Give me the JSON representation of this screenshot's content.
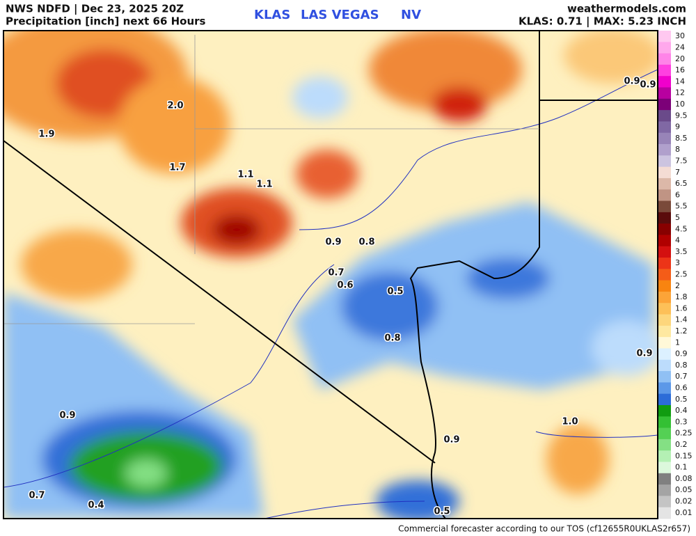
{
  "header": {
    "left_line1": "NWS NDFD | Dec 23, 2025 20Z",
    "left_line2": "Precipitation [inch] next 66 Hours",
    "station": "KLAS",
    "city": "LAS VEGAS",
    "state": "NV",
    "site": "weathermodels.com",
    "summary": "KLAS: 0.71 | MAX: 5.23 INCH"
  },
  "footer": "Commercial forecaster according to our TOS (cf12655R0UKLAS2r657)",
  "map_labels": [
    "2.0",
    "1.9",
    "1.7",
    "1.1",
    "1.1",
    "0.9",
    "0.8",
    "0.7",
    "0.6",
    "0.5",
    "0.8",
    "0.9",
    "0.9",
    "1.0",
    "0.9",
    "0.7",
    "0.4",
    "0.5",
    "0.9",
    "0.9"
  ],
  "colorbar": [
    {
      "label": "30",
      "color": "#ffc8f0"
    },
    {
      "label": "24",
      "color": "#ffa8ec"
    },
    {
      "label": "20",
      "color": "#ff84e8"
    },
    {
      "label": "16",
      "color": "#ff40e0"
    },
    {
      "label": "14",
      "color": "#f000cc"
    },
    {
      "label": "12",
      "color": "#b800a0"
    },
    {
      "label": "10",
      "color": "#7c0078"
    },
    {
      "label": "9.5",
      "color": "#6a4a8a"
    },
    {
      "label": "9",
      "color": "#8068a4"
    },
    {
      "label": "8.5",
      "color": "#9884b8"
    },
    {
      "label": "8",
      "color": "#b0a0cc"
    },
    {
      "label": "7.5",
      "color": "#ccc4e0"
    },
    {
      "label": "7",
      "color": "#f4dcd4"
    },
    {
      "label": "6.5",
      "color": "#dcb8a8"
    },
    {
      "label": "6",
      "color": "#c09484"
    },
    {
      "label": "5.5",
      "color": "#7a4a3a"
    },
    {
      "label": "5",
      "color": "#5a0c0c"
    },
    {
      "label": "4.5",
      "color": "#880000"
    },
    {
      "label": "4",
      "color": "#b00000"
    },
    {
      "label": "3.5",
      "color": "#d41010"
    },
    {
      "label": "3",
      "color": "#ec3418"
    },
    {
      "label": "2.5",
      "color": "#f45c18"
    },
    {
      "label": "2",
      "color": "#f88410"
    },
    {
      "label": "1.8",
      "color": "#fca438"
    },
    {
      "label": "1.6",
      "color": "#fdc058"
    },
    {
      "label": "1.4",
      "color": "#fdd67c"
    },
    {
      "label": "1.2",
      "color": "#fee8a0"
    },
    {
      "label": "1",
      "color": "#fff8d8"
    },
    {
      "label": "0.9",
      "color": "#dcf0ff"
    },
    {
      "label": "0.8",
      "color": "#bcdcfc"
    },
    {
      "label": "0.7",
      "color": "#90c0f4"
    },
    {
      "label": "0.6",
      "color": "#5c98e8"
    },
    {
      "label": "0.5",
      "color": "#2c6cd8"
    },
    {
      "label": "0.4",
      "color": "#109c10"
    },
    {
      "label": "0.3",
      "color": "#34c034"
    },
    {
      "label": "0.25",
      "color": "#54d054"
    },
    {
      "label": "0.2",
      "color": "#84e084"
    },
    {
      "label": "0.15",
      "color": "#b4f0b4"
    },
    {
      "label": "0.1",
      "color": "#dcf8dc"
    },
    {
      "label": "0.08",
      "color": "#808080"
    },
    {
      "label": "0.05",
      "color": "#a4a4a4"
    },
    {
      "label": "0.02",
      "color": "#c4c4c4"
    },
    {
      "label": "0.01",
      "color": "#e4e4e4"
    }
  ]
}
